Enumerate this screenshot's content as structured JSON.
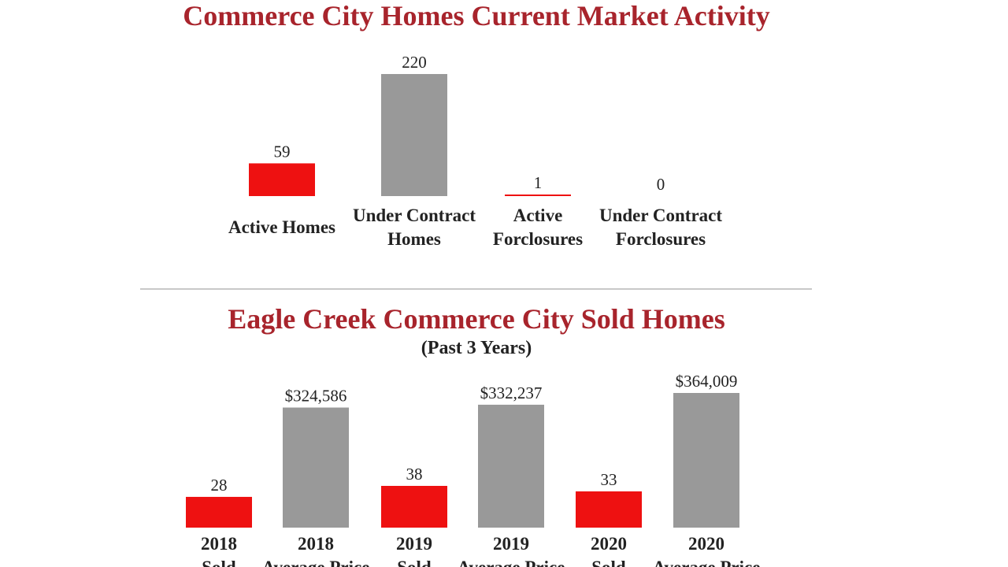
{
  "colors": {
    "accent": "#ee1111",
    "neutral": "#999999",
    "title": "#a8242c"
  },
  "chart_data": [
    {
      "type": "bar",
      "title": "Commerce City Homes Current Market Activity",
      "categories": [
        [
          "Active Homes"
        ],
        [
          "Under Contract",
          "Homes"
        ],
        [
          "Active",
          "Forclosures"
        ],
        [
          "Under Contract",
          "Forclosures"
        ]
      ],
      "values": [
        59,
        220,
        1,
        0
      ],
      "value_labels": [
        "59",
        "220",
        "1",
        "0"
      ],
      "bar_colors": [
        "#ee1111",
        "#999999",
        "#ee1111",
        "#999999"
      ],
      "ylim": [
        0,
        220
      ]
    },
    {
      "type": "bar",
      "title": "Eagle Creek Commerce City Sold Homes",
      "subtitle": "(Past 3 Years)",
      "categories": [
        [
          "2018",
          "Sold"
        ],
        [
          "2018",
          "Average Price"
        ],
        [
          "2019",
          "Sold"
        ],
        [
          "2019",
          "Average Price"
        ],
        [
          "2020",
          "Sold"
        ],
        [
          "2020",
          "Average Price"
        ]
      ],
      "series": [
        {
          "values": [
            28,
            null,
            38,
            null,
            33,
            null
          ]
        },
        {
          "values": [
            null,
            324586,
            null,
            332237,
            null,
            364009
          ]
        }
      ],
      "value_labels": [
        "28",
        "$324,586",
        "38",
        "$332,237",
        "33",
        "$364,009"
      ],
      "bar_colors": [
        "#ee1111",
        "#999999",
        "#ee1111",
        "#999999",
        "#ee1111",
        "#999999"
      ],
      "ylim_sold": [
        0,
        38
      ],
      "ylim_price": [
        0,
        364009
      ]
    }
  ]
}
